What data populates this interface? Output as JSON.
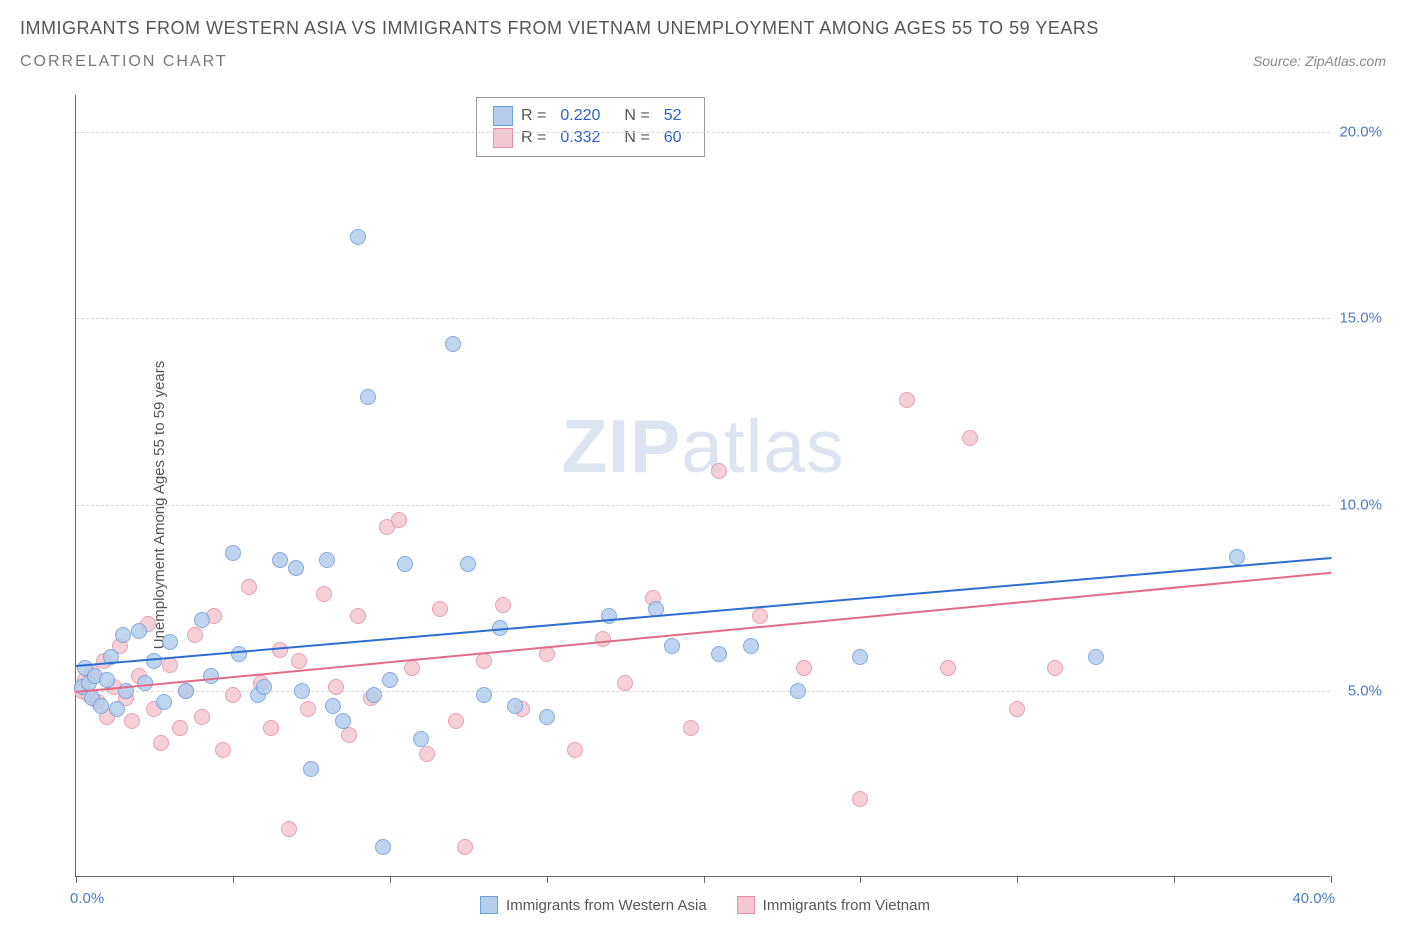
{
  "title": "IMMIGRANTS FROM WESTERN ASIA VS IMMIGRANTS FROM VIETNAM UNEMPLOYMENT AMONG AGES 55 TO 59 YEARS",
  "subtitle": "CORRELATION CHART",
  "source": "Source: ZipAtlas.com",
  "y_axis_label": "Unemployment Among Ages 55 to 59 years",
  "watermark_a": "ZIP",
  "watermark_b": "atlas",
  "chart": {
    "type": "scatter",
    "xlim": [
      0,
      40
    ],
    "ylim": [
      0,
      21
    ],
    "x_ticks": [
      0,
      5,
      10,
      15,
      20,
      25,
      30,
      35,
      40
    ],
    "x_tick_labels": {
      "0": "0.0%",
      "40": "40.0%"
    },
    "y_ticks": [
      5,
      10,
      15,
      20
    ],
    "y_tick_labels": {
      "5": "5.0%",
      "10": "10.0%",
      "15": "15.0%",
      "20": "20.0%"
    },
    "background_color": "#ffffff",
    "grid_color": "#d8d8d8",
    "axis_color": "#666666",
    "series": [
      {
        "name": "Immigrants from Western Asia",
        "color_fill": "#b4cdec",
        "color_stroke": "#6f9dd9",
        "marker_radius": 8,
        "R": "0.220",
        "N": "52",
        "trend": {
          "x0": 0,
          "y0": 5.7,
          "x1": 40,
          "y1": 8.6,
          "color": "#2d6fd0",
          "width": 2
        },
        "points": [
          [
            0.2,
            5.1
          ],
          [
            0.3,
            5.6
          ],
          [
            0.4,
            5.2
          ],
          [
            0.5,
            4.8
          ],
          [
            0.6,
            5.4
          ],
          [
            0.8,
            4.6
          ],
          [
            1.0,
            5.3
          ],
          [
            1.1,
            5.9
          ],
          [
            1.3,
            4.5
          ],
          [
            1.5,
            6.5
          ],
          [
            1.6,
            5.0
          ],
          [
            2.0,
            6.6
          ],
          [
            2.2,
            5.2
          ],
          [
            2.5,
            5.8
          ],
          [
            2.8,
            4.7
          ],
          [
            3.0,
            6.3
          ],
          [
            3.5,
            5.0
          ],
          [
            4.0,
            6.9
          ],
          [
            4.3,
            5.4
          ],
          [
            5.0,
            8.7
          ],
          [
            5.2,
            6.0
          ],
          [
            5.8,
            4.9
          ],
          [
            6.0,
            5.1
          ],
          [
            6.5,
            8.5
          ],
          [
            7.0,
            8.3
          ],
          [
            7.2,
            5.0
          ],
          [
            7.5,
            2.9
          ],
          [
            8.0,
            8.5
          ],
          [
            8.2,
            4.6
          ],
          [
            8.5,
            4.2
          ],
          [
            9.0,
            17.2
          ],
          [
            9.3,
            12.9
          ],
          [
            9.5,
            4.9
          ],
          [
            9.8,
            0.8
          ],
          [
            10.0,
            5.3
          ],
          [
            10.5,
            8.4
          ],
          [
            11.0,
            3.7
          ],
          [
            12.0,
            14.3
          ],
          [
            12.5,
            8.4
          ],
          [
            13.0,
            4.9
          ],
          [
            13.5,
            6.7
          ],
          [
            14.0,
            4.6
          ],
          [
            15.0,
            4.3
          ],
          [
            17.0,
            7.0
          ],
          [
            18.5,
            7.2
          ],
          [
            19.0,
            6.2
          ],
          [
            20.5,
            6.0
          ],
          [
            21.5,
            6.2
          ],
          [
            23.0,
            5.0
          ],
          [
            25.0,
            5.9
          ],
          [
            32.5,
            5.9
          ],
          [
            37.0,
            8.6
          ]
        ]
      },
      {
        "name": "Immigrants from Vietnam",
        "color_fill": "#f4c8d2",
        "color_stroke": "#e890a5",
        "marker_radius": 8,
        "R": "0.332",
        "N": "60",
        "trend": {
          "x0": 0,
          "y0": 5.0,
          "x1": 40,
          "y1": 8.2,
          "color": "#e26a8a",
          "width": 2
        },
        "points": [
          [
            0.2,
            5.0
          ],
          [
            0.3,
            5.3
          ],
          [
            0.4,
            4.9
          ],
          [
            0.5,
            5.5
          ],
          [
            0.7,
            4.7
          ],
          [
            0.9,
            5.8
          ],
          [
            1.0,
            4.3
          ],
          [
            1.2,
            5.1
          ],
          [
            1.4,
            6.2
          ],
          [
            1.6,
            4.8
          ],
          [
            1.8,
            4.2
          ],
          [
            2.0,
            5.4
          ],
          [
            2.3,
            6.8
          ],
          [
            2.5,
            4.5
          ],
          [
            2.7,
            3.6
          ],
          [
            3.0,
            5.7
          ],
          [
            3.3,
            4.0
          ],
          [
            3.5,
            5.0
          ],
          [
            3.8,
            6.5
          ],
          [
            4.0,
            4.3
          ],
          [
            4.4,
            7.0
          ],
          [
            4.7,
            3.4
          ],
          [
            5.0,
            4.9
          ],
          [
            5.5,
            7.8
          ],
          [
            5.9,
            5.2
          ],
          [
            6.2,
            4.0
          ],
          [
            6.5,
            6.1
          ],
          [
            6.8,
            1.3
          ],
          [
            7.1,
            5.8
          ],
          [
            7.4,
            4.5
          ],
          [
            7.9,
            7.6
          ],
          [
            8.3,
            5.1
          ],
          [
            8.7,
            3.8
          ],
          [
            9.0,
            7.0
          ],
          [
            9.4,
            4.8
          ],
          [
            9.9,
            9.4
          ],
          [
            10.3,
            9.6
          ],
          [
            10.7,
            5.6
          ],
          [
            11.2,
            3.3
          ],
          [
            11.6,
            7.2
          ],
          [
            12.1,
            4.2
          ],
          [
            12.4,
            0.8
          ],
          [
            13.0,
            5.8
          ],
          [
            13.6,
            7.3
          ],
          [
            14.2,
            4.5
          ],
          [
            15.0,
            6.0
          ],
          [
            15.9,
            3.4
          ],
          [
            16.8,
            6.4
          ],
          [
            17.5,
            5.2
          ],
          [
            18.4,
            7.5
          ],
          [
            19.6,
            4.0
          ],
          [
            20.5,
            10.9
          ],
          [
            21.8,
            7.0
          ],
          [
            23.2,
            5.6
          ],
          [
            25.0,
            2.1
          ],
          [
            26.5,
            12.8
          ],
          [
            27.8,
            5.6
          ],
          [
            28.5,
            11.8
          ],
          [
            30.0,
            4.5
          ],
          [
            31.2,
            5.6
          ]
        ]
      }
    ]
  },
  "legend_top": {
    "rows": [
      {
        "swatch_fill": "#b4cdec",
        "swatch_stroke": "#6f9dd9",
        "r_label": "R =",
        "r_val": "0.220",
        "n_label": "N =",
        "n_val": "52"
      },
      {
        "swatch_fill": "#f4c8d2",
        "swatch_stroke": "#e890a5",
        "r_label": "R =",
        "r_val": "0.332",
        "n_label": "N =",
        "n_val": "60"
      }
    ]
  },
  "legend_bottom": {
    "items": [
      {
        "swatch_fill": "#b4cdec",
        "swatch_stroke": "#6f9dd9",
        "label": "Immigrants from Western Asia"
      },
      {
        "swatch_fill": "#f4c8d2",
        "swatch_stroke": "#e890a5",
        "label": "Immigrants from Vietnam"
      }
    ]
  }
}
